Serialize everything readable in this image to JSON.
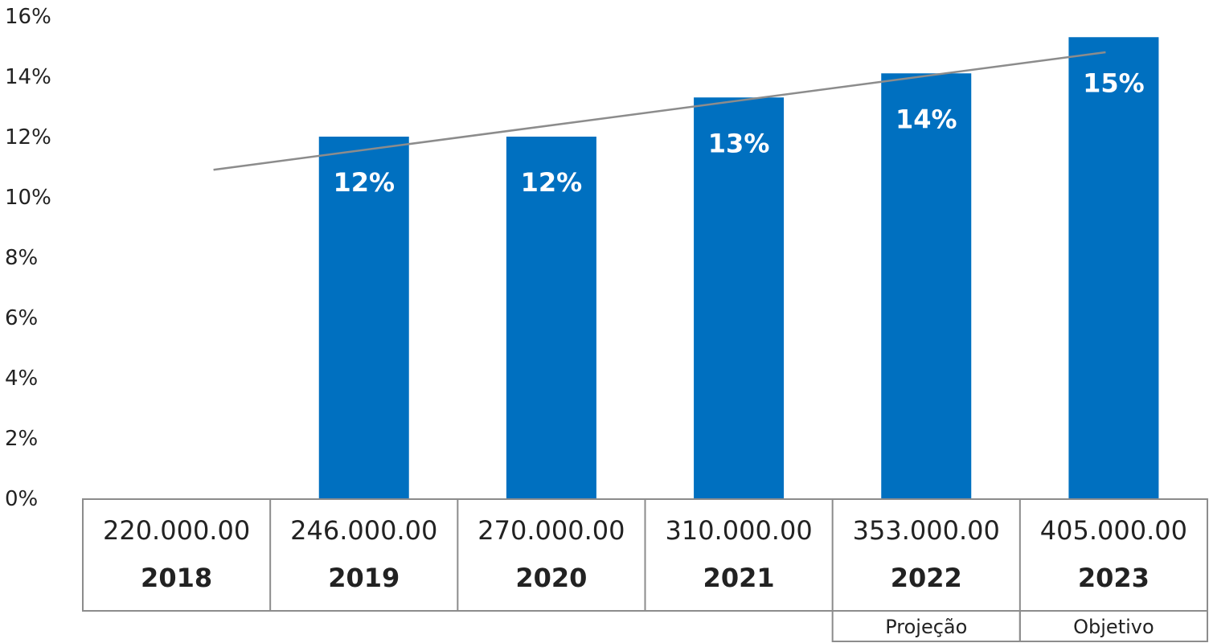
{
  "chart_data": {
    "type": "bar",
    "categories": [
      "2018",
      "2019",
      "2020",
      "2021",
      "2022",
      "2023"
    ],
    "values": [
      null,
      12.0,
      12.0,
      13.3,
      14.1,
      15.3
    ],
    "value_labels": [
      "",
      "12%",
      "12%",
      "13%",
      "14%",
      "15%"
    ],
    "row_values": [
      "220.000.00",
      "246.000.00",
      "270.000.00",
      "310.000.00",
      "353.000.00",
      "405.000.00"
    ],
    "notes": [
      {
        "category": "2022",
        "text": "Projeção"
      },
      {
        "category": "2023",
        "text": "Objetivo"
      }
    ],
    "trendline": {
      "start": 10.9,
      "end": 14.8
    },
    "ylim": [
      0,
      16
    ],
    "yticks": [
      0,
      2,
      4,
      6,
      8,
      10,
      12,
      14,
      16
    ],
    "ytick_labels": [
      "0%",
      "2%",
      "4%",
      "6%",
      "8%",
      "10%",
      "12%",
      "14%",
      "16%"
    ],
    "grid": false,
    "colors": {
      "bar": "#0070c0",
      "trend": "#8c8c8c",
      "table_border": "#8c8c8c"
    }
  }
}
